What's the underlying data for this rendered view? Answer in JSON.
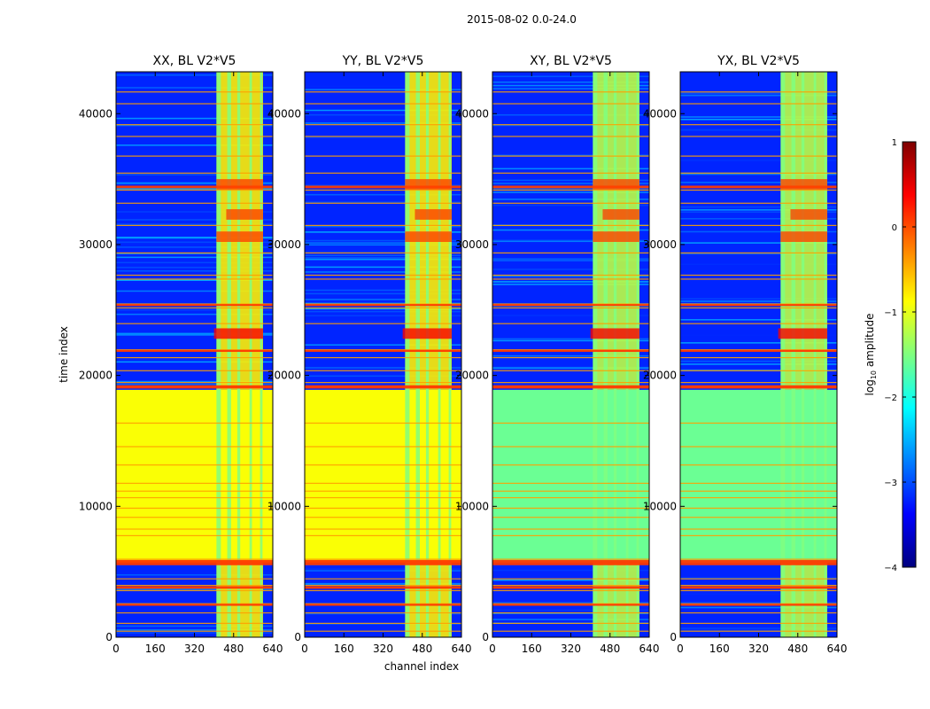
{
  "figure": {
    "suptitle": "2015-08-02 0.0-24.0",
    "xlabel": "channel index",
    "ylabel": "time index"
  },
  "chart_data": {
    "type": "heatmap",
    "title": "2015-08-02 0.0-24.0",
    "xlabel": "channel index",
    "ylabel": "time index",
    "xlim": [
      0,
      640
    ],
    "ylim": [
      0,
      43200
    ],
    "xticks": [
      0,
      160,
      320,
      480,
      640
    ],
    "yticks": [
      0,
      10000,
      20000,
      30000,
      40000
    ],
    "panels": [
      {
        "title": "XX, BL V2*V5",
        "pol": "XX"
      },
      {
        "title": "YY, BL V2*V5",
        "pol": "YY"
      },
      {
        "title": "XY, BL V2*V5",
        "pol": "XY"
      },
      {
        "title": "YX, BL V2*V5",
        "pol": "YX"
      }
    ],
    "colorbar": {
      "label": "log10 amplitude",
      "label_main": "log",
      "label_sub": "10",
      "label_rest": " amplitude",
      "min": -4,
      "max": 1,
      "ticks": [
        1,
        0,
        -1,
        -2,
        -3,
        -4
      ],
      "tick_labels": [
        "1",
        "0",
        "−1",
        "−2",
        "−3",
        "−4"
      ],
      "colormap": "jet",
      "colors": [
        "#00007f",
        "#0000ff",
        "#007fff",
        "#00ffff",
        "#7fff7f",
        "#ffff00",
        "#ff7f00",
        "#ff0000",
        "#7f0000"
      ]
    },
    "regions": {
      "rfi_channel_band": [
        410,
        600
      ],
      "bright_time_band": [
        5700,
        18900
      ],
      "bright_level_parallel": -0.9,
      "bright_level_cross": -1.6,
      "background_level": -3.2
    }
  }
}
